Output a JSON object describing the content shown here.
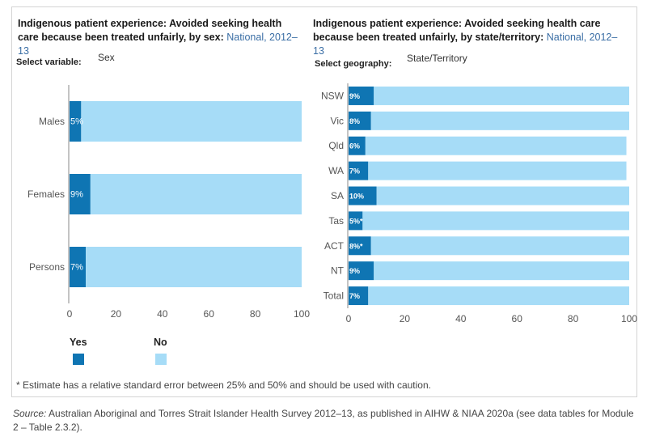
{
  "left": {
    "title_main": "Indigenous patient experience: Avoided seeking health care because been treated unfairly, by sex:",
    "title_sub": "National, 2012–13",
    "select_label": "Select variable:",
    "select_value": "Sex"
  },
  "right": {
    "title_main": "Indigenous patient experience: Avoided seeking health care because been treated unfairly, by state/territory:",
    "title_sub": "National, 2012–13",
    "select_label": "Select geography:",
    "select_value": "State/Territory"
  },
  "legend": {
    "yes": "Yes",
    "no": "No",
    "yes_color": "#0f75b3",
    "no_color": "#a6dcf7"
  },
  "footnote": "* Estimate has a relative standard error between 25% and 50% and should be used with caution.",
  "source": {
    "label": "Source:",
    "text": "Australian Aboriginal and Torres Strait Islander Health Survey 2012–13, as published in AIHW & NIAA 2020a (see data tables for Module 2 – Table 2.3.2)."
  },
  "chart_data": [
    {
      "type": "bar",
      "orientation": "horizontal",
      "stacked": true,
      "categories": [
        "Males",
        "Females",
        "Persons"
      ],
      "series": [
        {
          "name": "Yes",
          "values": [
            5,
            9,
            7
          ],
          "labels": [
            "5%",
            "9%",
            "7%"
          ]
        },
        {
          "name": "No",
          "values": [
            95,
            91,
            93
          ]
        }
      ],
      "xlim": [
        0,
        100
      ],
      "xticks": [
        0,
        20,
        40,
        60,
        80,
        100
      ]
    },
    {
      "type": "bar",
      "orientation": "horizontal",
      "stacked": true,
      "categories": [
        "NSW",
        "Vic",
        "Qld",
        "WA",
        "SA",
        "Tas",
        "ACT",
        "NT",
        "Total"
      ],
      "series": [
        {
          "name": "Yes",
          "values": [
            9,
            8,
            6,
            7,
            10,
            5,
            8,
            9,
            7
          ],
          "labels": [
            "9%",
            "8%",
            "6%",
            "7%",
            "10%",
            "5%*",
            "8%*",
            "9%",
            "7%"
          ]
        },
        {
          "name": "No",
          "values": [
            91,
            92,
            93,
            92,
            90,
            95,
            92,
            91,
            93
          ]
        }
      ],
      "xlim": [
        0,
        100
      ],
      "xticks": [
        0,
        20,
        40,
        60,
        80,
        100
      ]
    }
  ]
}
